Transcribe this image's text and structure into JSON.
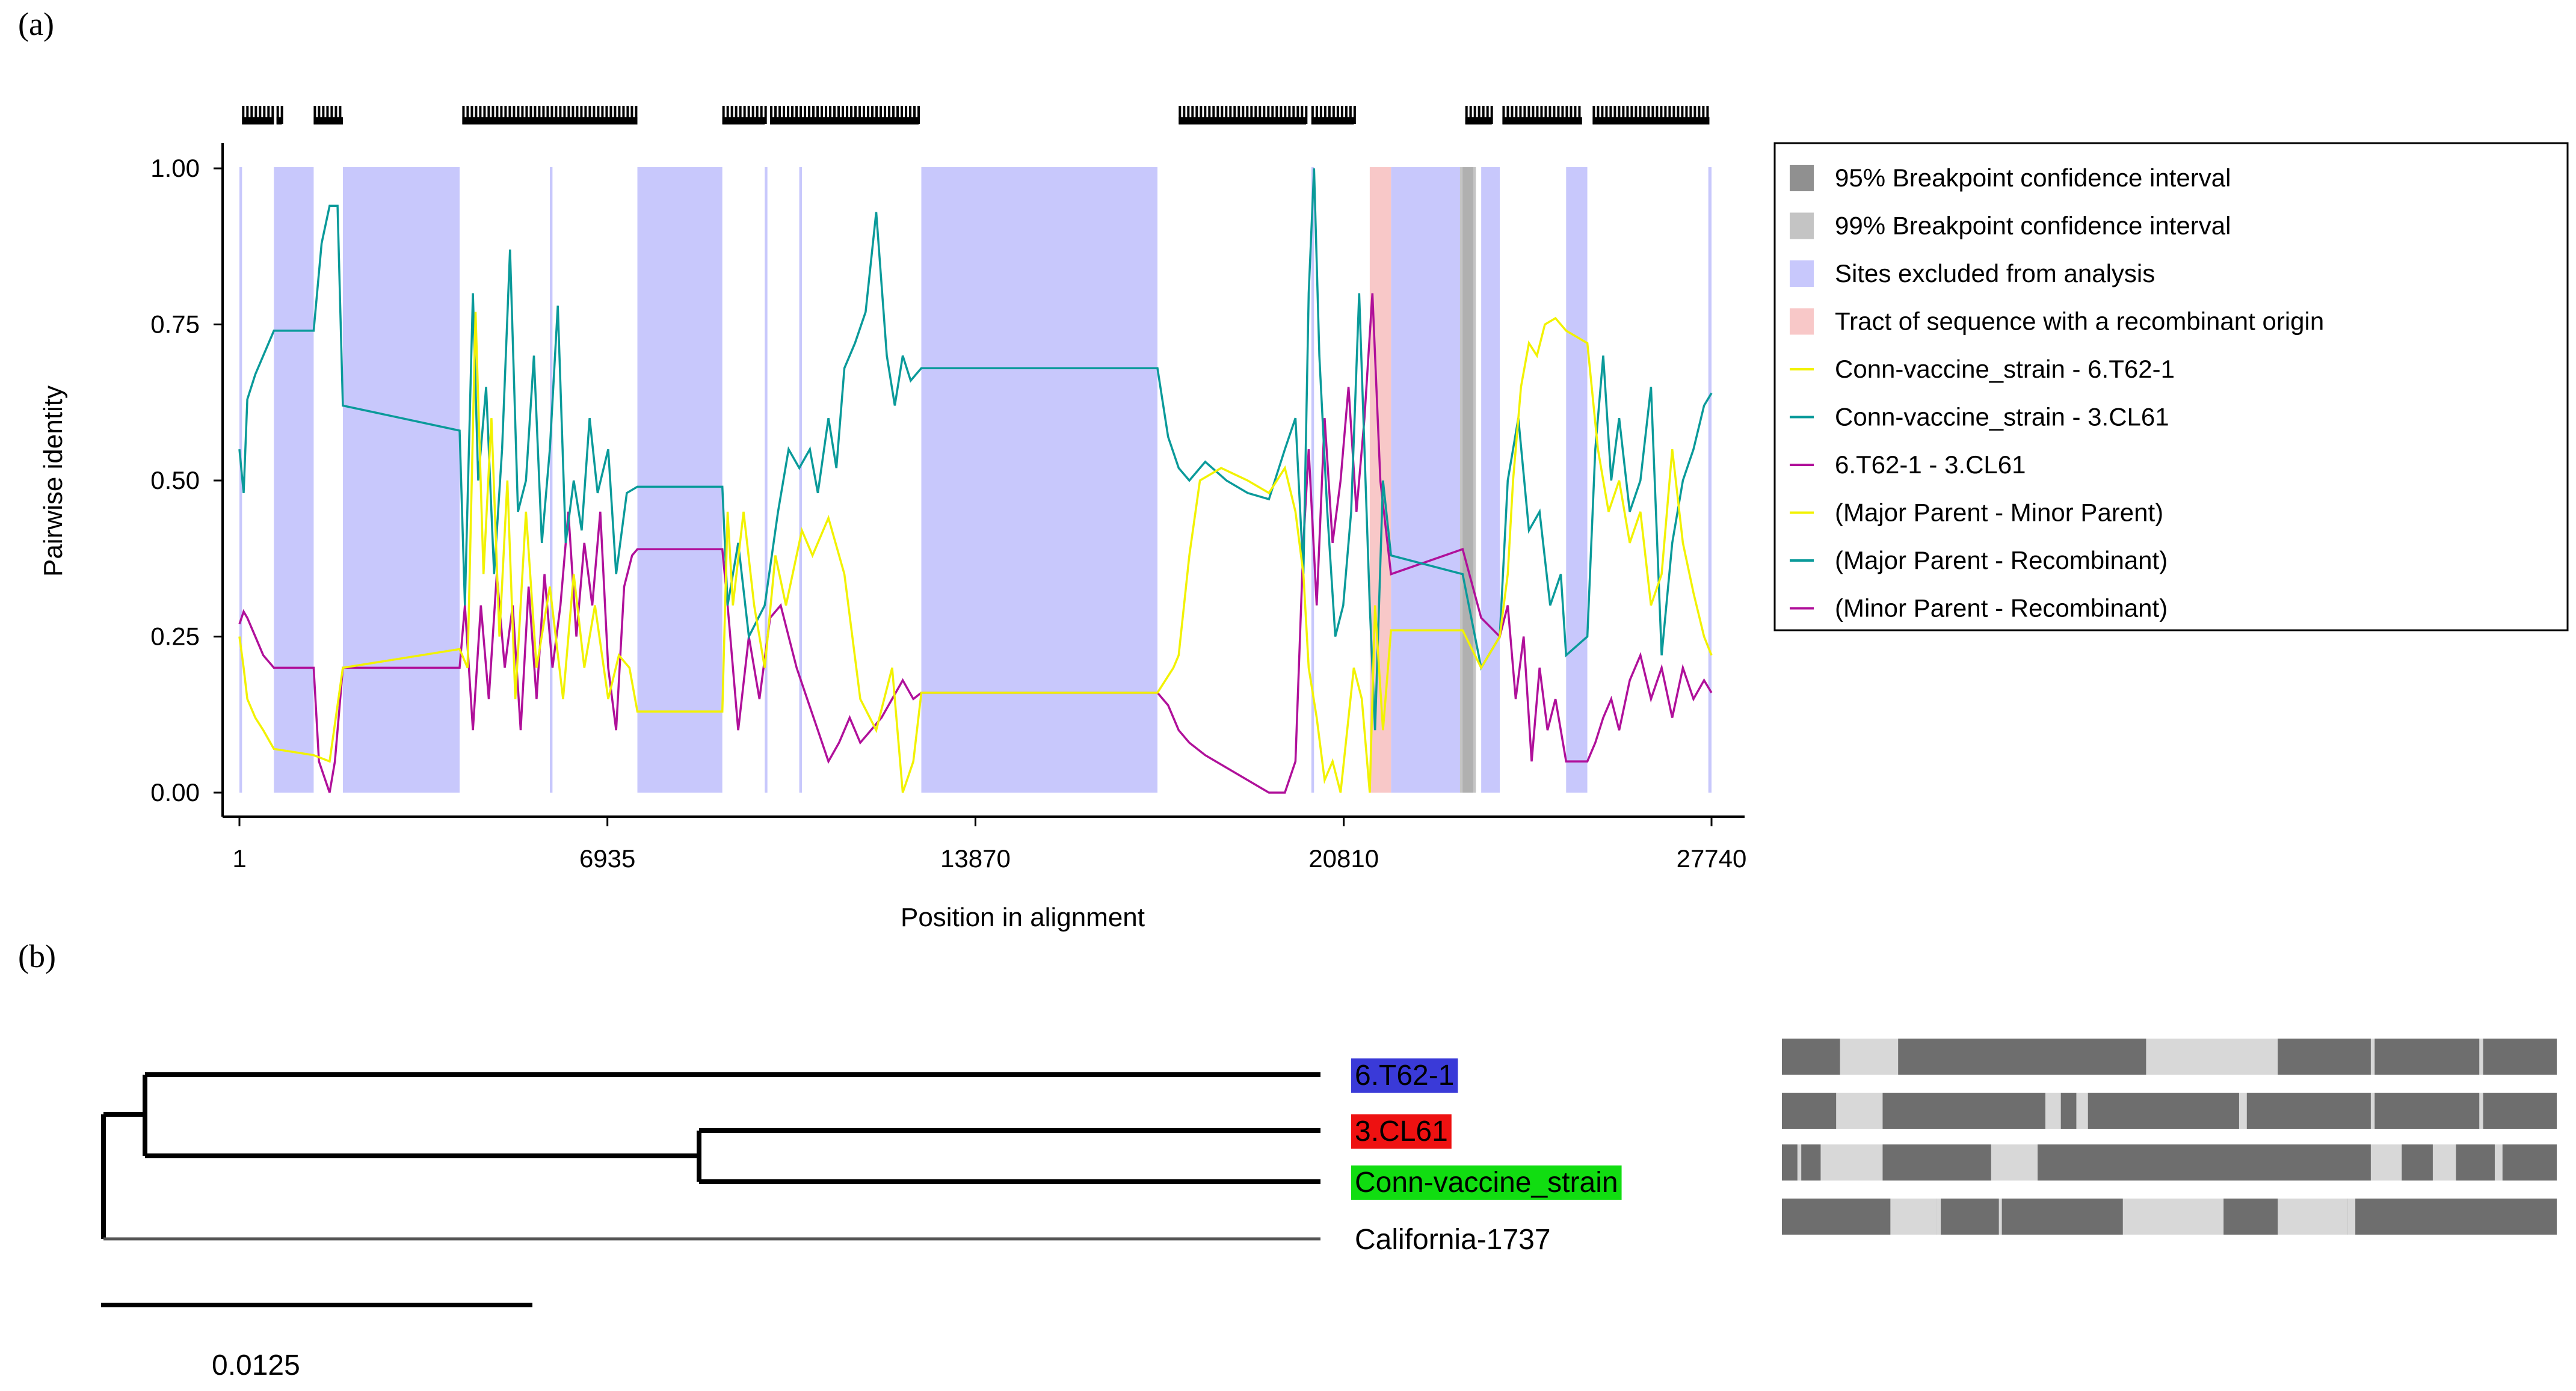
{
  "panel_a_label": "(a)",
  "panel_b_label": "(b)",
  "chart_data": {
    "type": "line",
    "title": "",
    "xlabel": "Position in alignment",
    "ylabel": "Pairwise identity",
    "xlim": [
      1,
      27740
    ],
    "ylim": [
      0,
      1
    ],
    "x_ticks": [
      1,
      6935,
      13870,
      20810,
      27740
    ],
    "x_tick_labels": [
      "1",
      "6935",
      "13870",
      "20810",
      "27740"
    ],
    "y_ticks": [
      0,
      0.25,
      0.5,
      0.75,
      1.0
    ],
    "y_tick_labels": [
      "0.00",
      "0.25",
      "0.50",
      "0.75",
      "1.00"
    ],
    "legend_position": "right",
    "excluded_regions": [
      [
        1,
        50
      ],
      [
        650,
        1400
      ],
      [
        1950,
        4150
      ],
      [
        5850,
        5900
      ],
      [
        7500,
        9100
      ],
      [
        9900,
        9950
      ],
      [
        10550,
        10600
      ],
      [
        12850,
        17300
      ],
      [
        20200,
        20250
      ],
      [
        21700,
        23050
      ],
      [
        23400,
        23750
      ],
      [
        25000,
        25400
      ],
      [
        27680,
        27740
      ]
    ],
    "recombinant_tract": [
      21300,
      21700
    ],
    "ci95_region": [
      23050,
      23250
    ],
    "ci99_region": [
      23000,
      23300
    ],
    "informative_site_blocks": [
      [
        50,
        650
      ],
      [
        700,
        800
      ],
      [
        1400,
        1950
      ],
      [
        4200,
        7500
      ],
      [
        9100,
        9900
      ],
      [
        10000,
        12800
      ],
      [
        17700,
        20100
      ],
      [
        20200,
        21000
      ],
      [
        23100,
        23600
      ],
      [
        23800,
        25300
      ],
      [
        25500,
        27700
      ]
    ],
    "legend": [
      {
        "label": "95% Breakpoint confidence interval",
        "color": "#909090",
        "kind": "box"
      },
      {
        "label": "99% Breakpoint confidence interval",
        "color": "#c4c4c4",
        "kind": "box"
      },
      {
        "label": "Sites excluded from analysis",
        "color": "#c8c8fc",
        "kind": "box"
      },
      {
        "label": "Tract of sequence with a recombinant origin",
        "color": "#f8c8c8",
        "kind": "box"
      },
      {
        "label": "Conn-vaccine_strain - 6.T62-1",
        "color": "#f2f200",
        "kind": "line"
      },
      {
        "label": "Conn-vaccine_strain - 3.CL61",
        "color": "#0a9a9a",
        "kind": "line"
      },
      {
        "label": "6.T62-1 - 3.CL61",
        "color": "#b0109a",
        "kind": "line"
      },
      {
        "label": "(Major Parent - Minor Parent)",
        "color": "#f2f200",
        "kind": "line"
      },
      {
        "label": "(Major Parent - Recombinant)",
        "color": "#0a9a9a",
        "kind": "line"
      },
      {
        "label": "(Minor Parent - Recombinant)",
        "color": "#b0109a",
        "kind": "line"
      }
    ],
    "series": [
      {
        "name": "Conn-vaccine_strain - 6.T62-1",
        "color": "#f2f200",
        "x": [
          1,
          80,
          150,
          300,
          450,
          650,
          1400,
          1700,
          1950,
          4150,
          4300,
          4450,
          4600,
          4750,
          4900,
          5050,
          5200,
          5400,
          5600,
          5850,
          6100,
          6300,
          6500,
          6700,
          6950,
          7150,
          7350,
          7500,
          9100,
          9200,
          9300,
          9500,
          9700,
          9900,
          10100,
          10300,
          10600,
          10800,
          11100,
          11400,
          11700,
          12000,
          12300,
          12500,
          12700,
          12850,
          17300,
          17600,
          17700,
          17900,
          18100,
          18500,
          19000,
          19400,
          19700,
          19900,
          20050,
          20150,
          20300,
          20450,
          20600,
          20750,
          20900,
          21000,
          21150,
          21300,
          21400,
          21550,
          21700,
          23050,
          23400,
          23750,
          23900,
          24000,
          24150,
          24300,
          24450,
          24600,
          24800,
          25000,
          25400,
          25600,
          25800,
          26000,
          26200,
          26400,
          26600,
          26800,
          27000,
          27200,
          27400,
          27600,
          27740
        ],
        "y": [
          0.25,
          0.2,
          0.15,
          0.12,
          0.1,
          0.07,
          0.06,
          0.05,
          0.2,
          0.23,
          0.2,
          0.77,
          0.35,
          0.6,
          0.25,
          0.5,
          0.15,
          0.45,
          0.2,
          0.33,
          0.15,
          0.35,
          0.2,
          0.3,
          0.15,
          0.22,
          0.2,
          0.13,
          0.13,
          0.45,
          0.3,
          0.45,
          0.3,
          0.2,
          0.38,
          0.3,
          0.42,
          0.38,
          0.44,
          0.35,
          0.15,
          0.1,
          0.2,
          0.0,
          0.05,
          0.16,
          0.16,
          0.2,
          0.22,
          0.38,
          0.5,
          0.52,
          0.5,
          0.48,
          0.52,
          0.45,
          0.35,
          0.2,
          0.12,
          0.02,
          0.05,
          0.0,
          0.12,
          0.2,
          0.15,
          0.0,
          0.3,
          0.1,
          0.26,
          0.26,
          0.2,
          0.25,
          0.35,
          0.5,
          0.65,
          0.72,
          0.7,
          0.75,
          0.76,
          0.74,
          0.72,
          0.55,
          0.45,
          0.5,
          0.4,
          0.45,
          0.3,
          0.35,
          0.55,
          0.4,
          0.32,
          0.25,
          0.22
        ]
      },
      {
        "name": "Conn-vaccine_strain - 3.CL61",
        "color": "#0a9a9a",
        "x": [
          1,
          80,
          150,
          300,
          450,
          650,
          1400,
          1550,
          1700,
          1850,
          1950,
          4150,
          4250,
          4400,
          4500,
          4650,
          4800,
          4950,
          5100,
          5250,
          5400,
          5550,
          5700,
          5850,
          6000,
          6150,
          6300,
          6450,
          6600,
          6750,
          6950,
          7100,
          7300,
          7500,
          9100,
          9200,
          9400,
          9600,
          9900,
          10150,
          10350,
          10550,
          10750,
          10900,
          11100,
          11250,
          11400,
          11600,
          11800,
          12000,
          12200,
          12350,
          12500,
          12650,
          12850,
          17300,
          17500,
          17700,
          17900,
          18200,
          18600,
          19000,
          19400,
          19700,
          19900,
          20050,
          20150,
          20250,
          20350,
          20500,
          20650,
          20800,
          20950,
          21100,
          21300,
          21400,
          21550,
          21700,
          23050,
          23400,
          23750,
          23900,
          24100,
          24300,
          24500,
          24700,
          24900,
          25000,
          25400,
          25550,
          25700,
          25850,
          26000,
          26200,
          26400,
          26600,
          26800,
          27000,
          27200,
          27400,
          27600,
          27740
        ],
        "y": [
          0.55,
          0.48,
          0.63,
          0.67,
          0.7,
          0.74,
          0.74,
          0.88,
          0.94,
          0.94,
          0.62,
          0.58,
          0.3,
          0.8,
          0.5,
          0.65,
          0.35,
          0.55,
          0.87,
          0.45,
          0.5,
          0.7,
          0.4,
          0.55,
          0.78,
          0.4,
          0.5,
          0.42,
          0.6,
          0.48,
          0.55,
          0.35,
          0.48,
          0.49,
          0.49,
          0.3,
          0.4,
          0.25,
          0.3,
          0.45,
          0.55,
          0.52,
          0.55,
          0.48,
          0.6,
          0.52,
          0.68,
          0.72,
          0.77,
          0.93,
          0.7,
          0.62,
          0.7,
          0.66,
          0.68,
          0.68,
          0.57,
          0.52,
          0.5,
          0.53,
          0.5,
          0.48,
          0.47,
          0.55,
          0.6,
          0.35,
          0.8,
          1.0,
          0.7,
          0.45,
          0.25,
          0.3,
          0.45,
          0.8,
          0.3,
          0.1,
          0.5,
          0.38,
          0.35,
          0.2,
          0.25,
          0.5,
          0.6,
          0.42,
          0.45,
          0.3,
          0.35,
          0.22,
          0.25,
          0.55,
          0.7,
          0.5,
          0.6,
          0.45,
          0.5,
          0.65,
          0.22,
          0.4,
          0.5,
          0.55,
          0.62,
          0.64
        ]
      },
      {
        "name": "6.T62-1 - 3.CL61",
        "color": "#b0109a",
        "x": [
          1,
          80,
          150,
          300,
          450,
          650,
          1400,
          1500,
          1700,
          1800,
          1950,
          4150,
          4250,
          4400,
          4550,
          4700,
          4850,
          5000,
          5150,
          5300,
          5450,
          5600,
          5750,
          5900,
          6050,
          6200,
          6350,
          6500,
          6650,
          6800,
          6950,
          7100,
          7250,
          7400,
          7500,
          9100,
          9200,
          9400,
          9600,
          9800,
          10000,
          10200,
          10500,
          10700,
          10900,
          11100,
          11300,
          11500,
          11700,
          11900,
          12100,
          12300,
          12500,
          12700,
          12850,
          17300,
          17500,
          17700,
          17900,
          18200,
          18600,
          19000,
          19400,
          19700,
          19900,
          20050,
          20150,
          20300,
          20450,
          20600,
          20750,
          20900,
          21050,
          21200,
          21350,
          21500,
          21700,
          23050,
          23400,
          23750,
          23900,
          24050,
          24200,
          24350,
          24500,
          24650,
          24800,
          25000,
          25400,
          25550,
          25700,
          25850,
          26000,
          26200,
          26400,
          26600,
          26800,
          27000,
          27200,
          27400,
          27600,
          27740
        ],
        "y": [
          0.27,
          0.29,
          0.28,
          0.25,
          0.22,
          0.2,
          0.2,
          0.05,
          0.0,
          0.05,
          0.2,
          0.2,
          0.3,
          0.1,
          0.3,
          0.15,
          0.35,
          0.2,
          0.3,
          0.1,
          0.33,
          0.15,
          0.35,
          0.2,
          0.3,
          0.45,
          0.25,
          0.4,
          0.3,
          0.45,
          0.2,
          0.1,
          0.33,
          0.38,
          0.39,
          0.39,
          0.3,
          0.1,
          0.25,
          0.15,
          0.28,
          0.3,
          0.2,
          0.15,
          0.1,
          0.05,
          0.08,
          0.12,
          0.08,
          0.1,
          0.12,
          0.15,
          0.18,
          0.15,
          0.16,
          0.16,
          0.14,
          0.1,
          0.08,
          0.06,
          0.04,
          0.02,
          0.0,
          0.0,
          0.05,
          0.4,
          0.55,
          0.3,
          0.6,
          0.4,
          0.5,
          0.65,
          0.45,
          0.6,
          0.8,
          0.5,
          0.35,
          0.39,
          0.28,
          0.25,
          0.3,
          0.15,
          0.25,
          0.05,
          0.2,
          0.1,
          0.15,
          0.05,
          0.05,
          0.08,
          0.12,
          0.15,
          0.1,
          0.18,
          0.22,
          0.15,
          0.2,
          0.12,
          0.2,
          0.15,
          0.18,
          0.16
        ]
      }
    ]
  },
  "tree": {
    "scale_label": "0.0125",
    "taxa": [
      {
        "label": "6.T62-1",
        "highlight": "#3a3ad8"
      },
      {
        "label": "3.CL61",
        "highlight": "#ee1111"
      },
      {
        "label": "Conn-vaccine_strain",
        "highlight": "#11dd11"
      },
      {
        "label": "California-1737",
        "highlight": ""
      }
    ]
  },
  "similarity_bars": {
    "dark_color": "#6e6e6e",
    "light_color": "#d8d8d8",
    "rows": [
      {
        "taxon": "6.T62-1",
        "light_segments": [
          [
            0.075,
            0.15
          ],
          [
            0.47,
            0.64
          ],
          [
            0.76,
            0.765
          ],
          [
            0.9,
            0.905
          ]
        ]
      },
      {
        "taxon": "3.CL61",
        "light_segments": [
          [
            0.07,
            0.13
          ],
          [
            0.34,
            0.36
          ],
          [
            0.38,
            0.395
          ],
          [
            0.59,
            0.6
          ],
          [
            0.76,
            0.765
          ],
          [
            0.9,
            0.905
          ]
        ]
      },
      {
        "taxon": "Conn-vaccine_strain",
        "light_segments": [
          [
            0.02,
            0.025
          ],
          [
            0.05,
            0.13
          ],
          [
            0.27,
            0.33
          ],
          [
            0.76,
            0.79
          ],
          [
            0.79,
            0.8
          ],
          [
            0.84,
            0.87
          ],
          [
            0.92,
            0.93
          ]
        ]
      },
      {
        "taxon": "California-1737",
        "light_segments": [
          [
            0.14,
            0.2
          ],
          [
            0.2,
            0.205
          ],
          [
            0.28,
            0.28
          ],
          [
            0.44,
            0.57
          ],
          [
            0.64,
            0.73
          ],
          [
            0.73,
            0.74
          ]
        ]
      }
    ]
  }
}
